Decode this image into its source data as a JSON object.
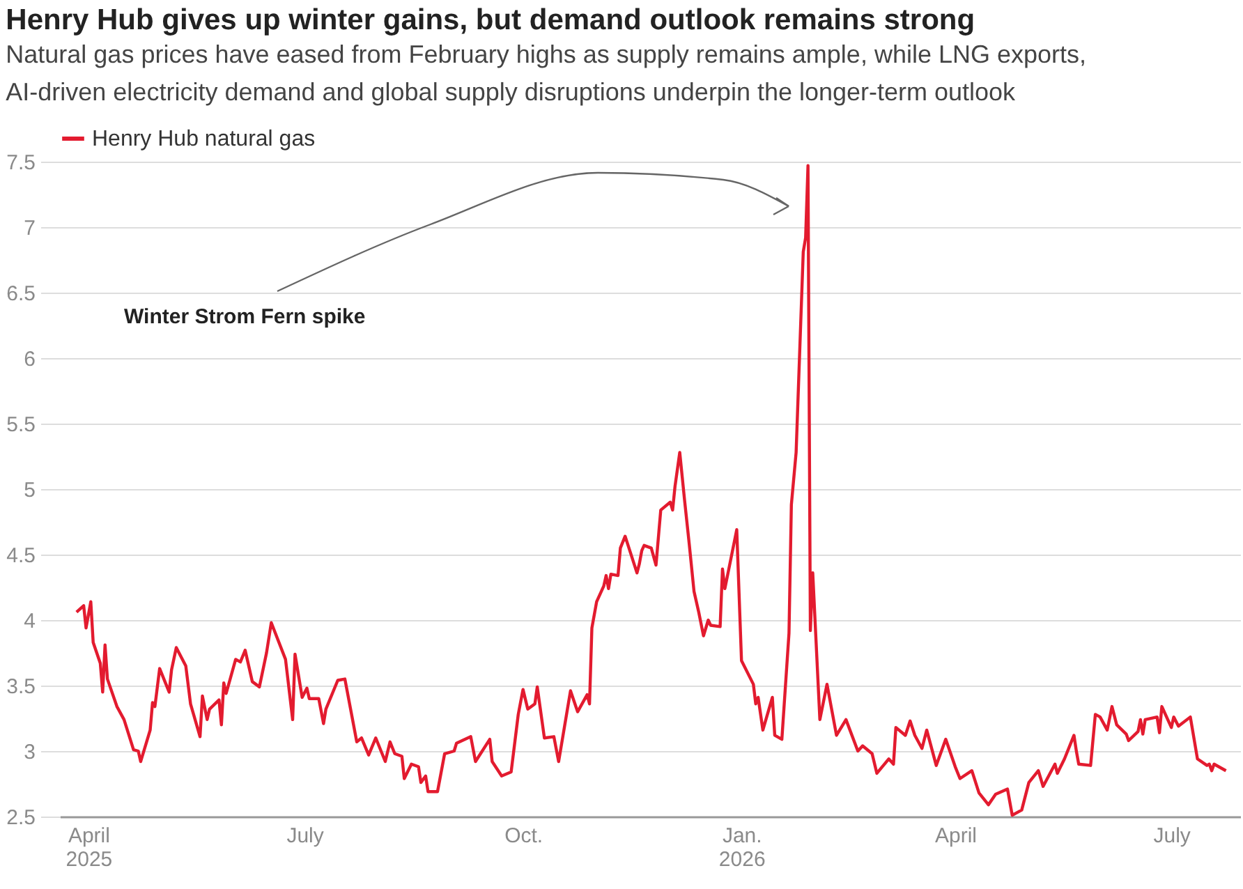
{
  "chart_data": {
    "type": "line",
    "title": "Henry Hub gives up winter gains, but demand outlook remains strong",
    "subtitle": "Natural gas prices have eased from February highs as supply remains ample, while LNG exports, AI-driven electricity demand and global supply disruptions underpin the longer-term outlook",
    "x": [
      "2025-03-27",
      "2025-03-30",
      "2025-03-31",
      "2025-04-02",
      "2025-04-03",
      "2025-04-06",
      "2025-04-07",
      "2025-04-08",
      "2025-04-09",
      "2025-04-13",
      "2025-04-16",
      "2025-04-20",
      "2025-04-22",
      "2025-04-23",
      "2025-04-27",
      "2025-04-28",
      "2025-04-29",
      "2025-05-01",
      "2025-05-05",
      "2025-05-06",
      "2025-05-08",
      "2025-05-12",
      "2025-05-14",
      "2025-05-18",
      "2025-05-19",
      "2025-05-21",
      "2025-05-22",
      "2025-05-26",
      "2025-05-27",
      "2025-05-28",
      "2025-05-29",
      "2025-06-02",
      "2025-06-04",
      "2025-06-06",
      "2025-06-09",
      "2025-06-12",
      "2025-06-15",
      "2025-06-17",
      "2025-06-23",
      "2025-06-26",
      "2025-06-27",
      "2025-06-30",
      "2025-07-02",
      "2025-07-03",
      "2025-07-07",
      "2025-07-09",
      "2025-07-10",
      "2025-07-15",
      "2025-07-18",
      "2025-07-23",
      "2025-07-25",
      "2025-07-28",
      "2025-07-31",
      "2025-08-04",
      "2025-08-06",
      "2025-08-08",
      "2025-08-11",
      "2025-08-12",
      "2025-08-15",
      "2025-08-18",
      "2025-08-19",
      "2025-08-21",
      "2025-08-22",
      "2025-08-26",
      "2025-08-29",
      "2025-09-02",
      "2025-09-03",
      "2025-09-09",
      "2025-09-11",
      "2025-09-17",
      "2025-09-18",
      "2025-09-22",
      "2025-09-26",
      "2025-09-29",
      "2025-10-01",
      "2025-10-03",
      "2025-10-06",
      "2025-10-07",
      "2025-10-10",
      "2025-10-14",
      "2025-10-16",
      "2025-10-21",
      "2025-10-24",
      "2025-10-28",
      "2025-10-29",
      "2025-10-30",
      "2025-11-01",
      "2025-11-04",
      "2025-11-05",
      "2025-11-06",
      "2025-11-07",
      "2025-11-10",
      "2025-11-11",
      "2025-11-13",
      "2025-11-18",
      "2025-11-19",
      "2025-11-20",
      "2025-11-21",
      "2025-11-24",
      "2025-11-26",
      "2025-11-28",
      "2025-12-02",
      "2025-12-03",
      "2025-12-04",
      "2025-12-06",
      "2025-12-08",
      "2025-12-10",
      "2025-12-12",
      "2025-12-14",
      "2025-12-16",
      "2025-12-18",
      "2025-12-19",
      "2025-12-23",
      "2025-12-24",
      "2025-12-25",
      "2025-12-30",
      "2026-01-01",
      "2026-01-06",
      "2026-01-07",
      "2026-01-08",
      "2026-01-10",
      "2026-01-14",
      "2026-01-15",
      "2026-01-18",
      "2026-01-21",
      "2026-01-22",
      "2026-01-24",
      "2026-01-27",
      "2026-01-28",
      "2026-01-29",
      "2026-01-30",
      "2026-01-31",
      "2026-02-03",
      "2026-02-06",
      "2026-02-10",
      "2026-02-14",
      "2026-02-19",
      "2026-02-21",
      "2026-02-25",
      "2026-02-27",
      "2026-03-04",
      "2026-03-06",
      "2026-03-07",
      "2026-03-11",
      "2026-03-13",
      "2026-03-15",
      "2026-03-18",
      "2026-03-20",
      "2026-03-24",
      "2026-03-28",
      "2026-04-01",
      "2026-04-03",
      "2026-04-08",
      "2026-04-11",
      "2026-04-15",
      "2026-04-18",
      "2026-04-23",
      "2026-04-25",
      "2026-04-29",
      "2026-05-02",
      "2026-05-06",
      "2026-05-08",
      "2026-05-13",
      "2026-05-14",
      "2026-05-17",
      "2026-05-21",
      "2026-05-22",
      "2026-05-23",
      "2026-05-28",
      "2026-05-30",
      "2026-06-01",
      "2026-06-04",
      "2026-06-06",
      "2026-06-08",
      "2026-06-12",
      "2026-06-13",
      "2026-06-17",
      "2026-06-18",
      "2026-06-19",
      "2026-06-20",
      "2026-06-25",
      "2026-06-26",
      "2026-06-27",
      "2026-07-01",
      "2026-07-02",
      "2026-07-04",
      "2026-07-09",
      "2026-07-12",
      "2026-07-16",
      "2026-07-17",
      "2026-07-18",
      "2026-07-19",
      "2026-07-24"
    ],
    "series": [
      {
        "name": "Henry Hub natural gas",
        "color": "#e31b2f",
        "values": [
          4.06,
          4.11,
          3.94,
          4.14,
          3.83,
          3.67,
          3.45,
          3.81,
          3.55,
          3.34,
          3.24,
          3.01,
          3.0,
          2.92,
          3.16,
          3.37,
          3.34,
          3.63,
          3.45,
          3.62,
          3.79,
          3.65,
          3.36,
          3.11,
          3.42,
          3.24,
          3.32,
          3.39,
          3.2,
          3.52,
          3.44,
          3.7,
          3.68,
          3.77,
          3.53,
          3.49,
          3.75,
          3.98,
          3.7,
          3.24,
          3.74,
          3.41,
          3.48,
          3.4,
          3.4,
          3.21,
          3.32,
          3.54,
          3.55,
          3.07,
          3.1,
          2.97,
          3.1,
          2.92,
          3.07,
          2.98,
          2.96,
          2.79,
          2.9,
          2.88,
          2.76,
          2.81,
          2.69,
          2.69,
          2.98,
          3.0,
          3.06,
          3.11,
          2.92,
          3.09,
          2.92,
          2.81,
          2.84,
          3.28,
          3.47,
          3.32,
          3.36,
          3.49,
          3.1,
          3.11,
          2.92,
          3.46,
          3.3,
          3.43,
          3.36,
          3.94,
          4.14,
          4.26,
          4.34,
          4.24,
          4.35,
          4.34,
          4.55,
          4.64,
          4.36,
          4.43,
          4.53,
          4.57,
          4.55,
          4.42,
          4.84,
          4.9,
          4.84,
          5.02,
          5.28,
          4.92,
          4.58,
          4.22,
          4.06,
          3.88,
          4.0,
          3.96,
          3.95,
          4.39,
          4.24,
          4.69,
          3.69,
          3.51,
          3.36,
          3.41,
          3.16,
          3.41,
          3.12,
          3.09,
          3.9,
          4.88,
          5.28,
          6.81,
          6.92,
          7.47,
          3.92,
          4.36,
          3.24,
          3.51,
          3.12,
          3.24,
          3.0,
          3.04,
          2.98,
          2.83,
          2.94,
          2.9,
          3.18,
          3.12,
          3.23,
          3.12,
          3.02,
          3.16,
          2.89,
          3.09,
          2.88,
          2.79,
          2.85,
          2.68,
          2.59,
          2.67,
          2.71,
          2.51,
          2.55,
          2.76,
          2.85,
          2.73,
          2.9,
          2.83,
          2.94,
          3.12,
          3.0,
          2.9,
          2.89,
          3.28,
          3.26,
          3.16,
          3.34,
          3.2,
          3.13,
          3.08,
          3.15,
          3.24,
          3.13,
          3.24,
          3.26,
          3.14,
          3.34,
          3.18,
          3.26,
          3.19,
          3.26,
          2.94,
          2.89,
          2.9,
          2.85,
          2.9,
          2.85
        ]
      }
    ],
    "xlim": [
      "2025-03-20",
      "2026-07-30"
    ],
    "xticks": [
      {
        "value": "2025-04-01",
        "label": "April\n2025"
      },
      {
        "value": "2025-07-01",
        "label": "July"
      },
      {
        "value": "2025-10-01",
        "label": "Oct."
      },
      {
        "value": "2026-01-01",
        "label": "Jan.\n2026"
      },
      {
        "value": "2026-04-01",
        "label": "April"
      },
      {
        "value": "2026-07-01",
        "label": "July"
      }
    ],
    "ylim": [
      2.5,
      7.5
    ],
    "yticks": [
      2.5,
      3,
      3.5,
      4,
      4.5,
      5,
      5.5,
      6,
      6.5,
      7,
      7.5
    ],
    "grid": "y",
    "legend": "top left",
    "line_style": "solid",
    "annotations": [
      "Winter Strom Fern spike"
    ]
  }
}
